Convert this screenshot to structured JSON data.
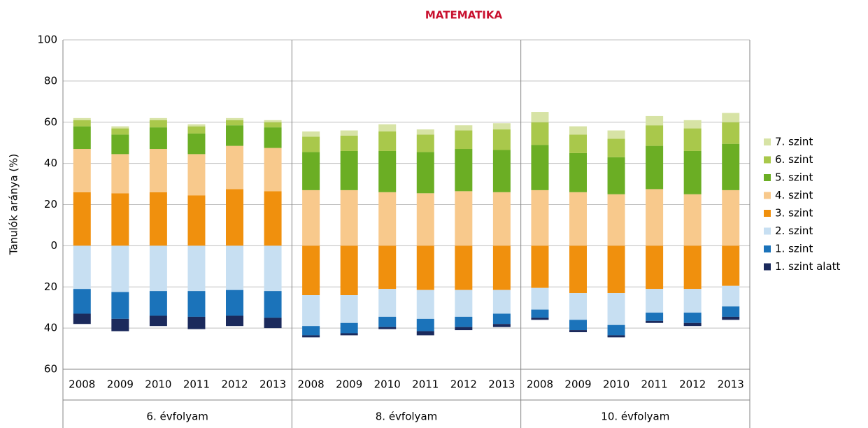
{
  "chart_data": {
    "type": "bar",
    "stacked": true,
    "title": "MATEMATIKA",
    "y_label": "Tanulók aránya (%)",
    "categories": [
      "2008",
      "2009",
      "2010",
      "2011",
      "2012",
      "2013",
      "2008",
      "2009",
      "2010",
      "2011",
      "2012",
      "2013",
      "2008",
      "2009",
      "2010",
      "2011",
      "2012",
      "2013"
    ],
    "groups": [
      "6. évfolyam",
      "8. évfolyam",
      "10. évfolyam"
    ],
    "ylim": [
      -60,
      100
    ],
    "yticks": [
      {
        "value": -60,
        "label": "60"
      },
      {
        "value": -40,
        "label": "40"
      },
      {
        "value": -20,
        "label": "20"
      },
      0,
      20,
      40,
      60,
      80,
      100
    ],
    "grid": true,
    "legend": "right",
    "series": [
      {
        "name": "7. szint",
        "color": "#d7e3a5",
        "values": [
          1,
          1,
          1,
          1,
          1,
          1,
          2.5,
          2.5,
          3.5,
          2.5,
          2.5,
          3,
          5,
          4,
          4,
          4.5,
          4,
          4.5
        ]
      },
      {
        "name": "6. szint",
        "color": "#a9c84b",
        "values": [
          3,
          3,
          3.5,
          3.5,
          2.5,
          2.5,
          7.5,
          7.5,
          9.5,
          8.5,
          9,
          10,
          11,
          9,
          9,
          10,
          11,
          10.5
        ]
      },
      {
        "name": "5. szint",
        "color": "#6bae24",
        "values": [
          11,
          9.5,
          10.5,
          10,
          10,
          10,
          18.5,
          19,
          20,
          20,
          20.5,
          20.5,
          22,
          19,
          18,
          21,
          21,
          22.5
        ]
      },
      {
        "name": "4. szint",
        "color": "#f8c98c",
        "values": [
          21,
          19,
          21,
          20,
          21,
          21,
          27,
          27,
          26,
          25.5,
          26.5,
          26,
          27,
          26,
          25,
          27.5,
          25,
          27
        ]
      },
      {
        "name": "3. szint",
        "color": "#f0900d",
        "values": [
          26,
          25.5,
          26,
          24.5,
          27.5,
          26.5,
          -24,
          -24,
          -21,
          -21.5,
          -21.5,
          -21.5,
          -20.5,
          -23,
          -23,
          -21,
          -21,
          -19.5
        ]
      },
      {
        "name": "2. szint",
        "color": "#c7dff2",
        "values": [
          -21,
          -22.5,
          -22,
          -22,
          -21.5,
          -22,
          -15,
          -13.5,
          -13.5,
          -14,
          -13,
          -11.5,
          -10.5,
          -13,
          -15.5,
          -11.5,
          -11.5,
          -10
        ]
      },
      {
        "name": "1. szint",
        "color": "#1b73ba",
        "values": [
          -12,
          -13,
          -12,
          -12.5,
          -12.5,
          -13,
          -4.5,
          -5,
          -5,
          -6,
          -5,
          -5,
          -4,
          -5,
          -5,
          -4,
          -5,
          -5
        ]
      },
      {
        "name": "1. szint alatt",
        "color": "#1b2a5c",
        "values": [
          -5,
          -6,
          -5,
          -6,
          -5,
          -5,
          -1,
          -1,
          -1,
          -2,
          -1.5,
          -1.5,
          -1,
          -1,
          -1,
          -1,
          -1.5,
          -1.5
        ]
      }
    ]
  }
}
